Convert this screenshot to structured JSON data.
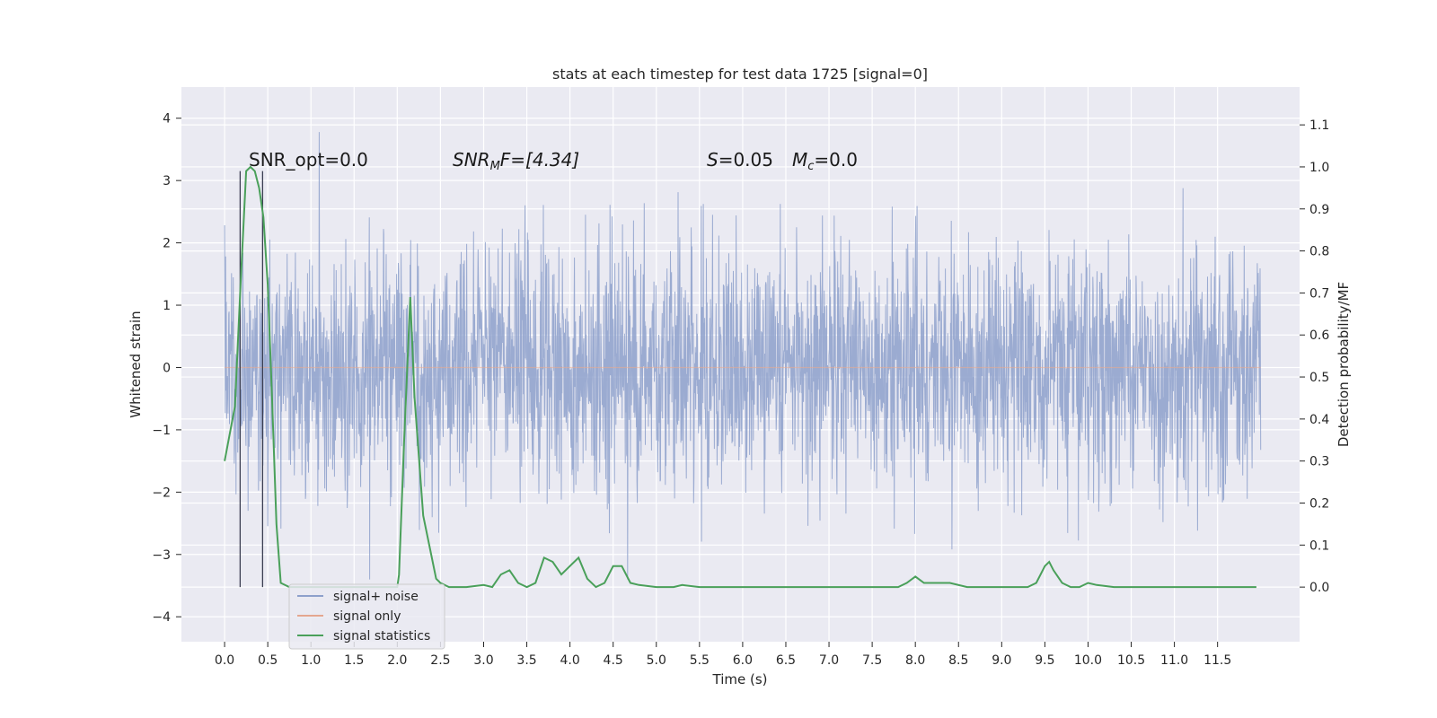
{
  "chart_data": {
    "type": "line",
    "title": "stats at each timestep for test data 1725 [signal=0]",
    "xlabel": "Time (s)",
    "ylabel": "Whitened strain",
    "ylabel_right": "Detection probability/MF",
    "xlim": [
      -0.5,
      12.45
    ],
    "ylim": [
      -4.4,
      4.5
    ],
    "ylim_right": [
      -0.13,
      1.19
    ],
    "x_ticks": [
      "0.0",
      "0.5",
      "1.0",
      "1.5",
      "2.0",
      "2.5",
      "3.0",
      "3.5",
      "4.0",
      "4.5",
      "5.0",
      "5.5",
      "6.0",
      "6.5",
      "7.0",
      "7.5",
      "8.0",
      "8.5",
      "9.0",
      "9.5",
      "10.0",
      "10.5",
      "11.0",
      "11.5"
    ],
    "y_ticks": [
      "4",
      "3",
      "2",
      "1",
      "0",
      "−1",
      "−2",
      "−3",
      "−4"
    ],
    "y_ticks_right": [
      "1.1",
      "1.0",
      "0.9",
      "0.8",
      "0.7",
      "0.6",
      "0.5",
      "0.4",
      "0.3",
      "0.2",
      "0.1",
      "0.0"
    ],
    "grid": true,
    "legend_position": "lower-left",
    "annotations": {
      "snr_opt": "SNR_opt=0.0",
      "snr_mf_base": "SNR",
      "snr_mf_sub": "M",
      "snr_mf_rest": "F=[4.34]",
      "s_label": "S",
      "s_value": "=0.05",
      "mc_base": "M",
      "mc_sub": "c",
      "mc_value": "=0.0"
    },
    "series": [
      {
        "name": "signal+ noise",
        "color": "#8da0cb",
        "style": "dense noise, approx range -3.4 to 4.1, typical band -2 to 2.4",
        "x_range": [
          0.0,
          12.0
        ]
      },
      {
        "name": "signal only",
        "color": "#e4a68f",
        "values": "flat at 0"
      },
      {
        "name": "signal statistics",
        "color": "#4aa05a",
        "axis": "right",
        "x": [
          0.0,
          0.12,
          0.18,
          0.25,
          0.3,
          0.35,
          0.4,
          0.45,
          0.5,
          0.55,
          0.6,
          0.65,
          0.75,
          1.0,
          1.5,
          2.0,
          2.02,
          2.08,
          2.15,
          2.2,
          2.3,
          2.38,
          2.45,
          2.5,
          2.6,
          2.8,
          3.0,
          3.1,
          3.2,
          3.3,
          3.4,
          3.5,
          3.6,
          3.7,
          3.8,
          3.9,
          4.0,
          4.1,
          4.2,
          4.3,
          4.4,
          4.5,
          4.6,
          4.7,
          4.8,
          5.0,
          5.2,
          5.3,
          5.5,
          6.0,
          7.0,
          7.5,
          7.8,
          7.9,
          8.0,
          8.1,
          8.2,
          8.4,
          8.6,
          9.0,
          9.3,
          9.4,
          9.5,
          9.55,
          9.6,
          9.7,
          9.8,
          9.9,
          10.0,
          10.1,
          10.3,
          10.6,
          11.0,
          11.5,
          11.95
        ],
        "values": [
          0.3,
          0.43,
          0.7,
          0.99,
          1.0,
          0.99,
          0.95,
          0.88,
          0.72,
          0.45,
          0.15,
          0.01,
          0.0,
          0.0,
          0.0,
          0.0,
          0.03,
          0.35,
          0.69,
          0.45,
          0.17,
          0.09,
          0.02,
          0.01,
          0.0,
          0.0,
          0.005,
          0.0,
          0.03,
          0.04,
          0.01,
          0.0,
          0.01,
          0.07,
          0.06,
          0.03,
          0.05,
          0.07,
          0.02,
          0.0,
          0.01,
          0.05,
          0.05,
          0.01,
          0.005,
          0.0,
          0.0,
          0.005,
          0.0,
          0.0,
          0.0,
          0.0,
          0.0,
          0.01,
          0.025,
          0.01,
          0.01,
          0.01,
          0.0,
          0.0,
          0.0,
          0.01,
          0.05,
          0.06,
          0.04,
          0.01,
          0.0,
          0.0,
          0.01,
          0.005,
          0.0,
          0.0,
          0.0,
          0.0,
          0.0
        ]
      }
    ],
    "vertical_markers": [
      0.18,
      0.44
    ]
  },
  "legend": {
    "entry_noise": "signal+ noise",
    "entry_signal": "signal only",
    "entry_stats": "signal statistics"
  },
  "colors": {
    "background": "#eaeaf2",
    "grid": "#ffffff",
    "noise": "#8da0cb",
    "signal": "#e4a68f",
    "stats": "#4aa05a",
    "marker": "#3b3f52"
  }
}
